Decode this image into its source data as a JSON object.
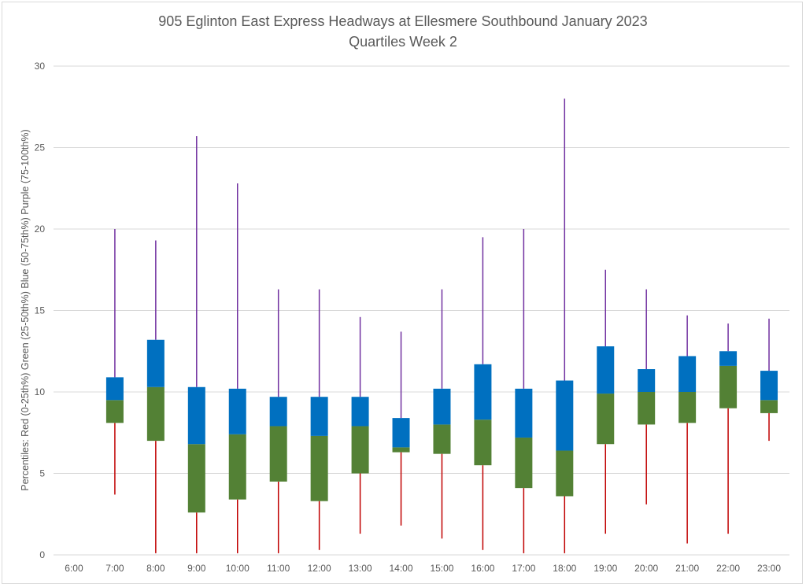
{
  "chart_data": {
    "type": "box",
    "title": "905 Eglinton East Express Headways at Ellesmere Southbound January 2023",
    "subtitle": "Quartiles Week 2",
    "xlabel": "",
    "ylabel": "Percentiles:  Red (0-25th%)  Green (25-50th%)  Blue (50-75th%)  Purple (75-100th%)",
    "ylim": [
      0,
      30
    ],
    "yticks": [
      0,
      5,
      10,
      15,
      20,
      25,
      30
    ],
    "grid": true,
    "legend": "none",
    "colors": {
      "q1_whisker": "#c00000",
      "lower_box": "#538135",
      "upper_box": "#0070c0",
      "q4_whisker": "#7030a0",
      "grid": "#d9d9d9",
      "text": "#595959"
    },
    "categories": [
      "6:00",
      "7:00",
      "8:00",
      "9:00",
      "10:00",
      "11:00",
      "12:00",
      "13:00",
      "14:00",
      "15:00",
      "16:00",
      "17:00",
      "18:00",
      "19:00",
      "20:00",
      "21:00",
      "22:00",
      "23:00"
    ],
    "series": [
      {
        "name": "min",
        "values": [
          null,
          3.7,
          0.1,
          0.1,
          0.1,
          0.1,
          0.3,
          1.3,
          1.8,
          1.0,
          0.3,
          0.1,
          0.1,
          1.3,
          3.1,
          0.7,
          1.3,
          7.0
        ]
      },
      {
        "name": "q1",
        "values": [
          null,
          8.1,
          7.0,
          2.6,
          3.4,
          4.5,
          3.3,
          5.0,
          6.3,
          6.2,
          5.5,
          4.1,
          3.6,
          6.8,
          8.0,
          8.1,
          9.0,
          8.7
        ]
      },
      {
        "name": "median",
        "values": [
          null,
          9.5,
          10.3,
          6.8,
          7.4,
          7.9,
          7.3,
          7.9,
          6.6,
          8.0,
          8.3,
          7.2,
          6.4,
          9.9,
          10.0,
          10.0,
          11.6,
          9.5
        ]
      },
      {
        "name": "q3",
        "values": [
          null,
          10.9,
          13.2,
          10.3,
          10.2,
          9.7,
          9.7,
          9.7,
          8.4,
          10.2,
          11.7,
          10.2,
          10.7,
          12.8,
          11.4,
          12.2,
          12.5,
          11.3
        ]
      },
      {
        "name": "max",
        "values": [
          null,
          20.0,
          19.3,
          25.7,
          22.8,
          16.3,
          16.3,
          14.6,
          13.7,
          16.3,
          19.5,
          20.0,
          28.0,
          17.5,
          16.3,
          14.7,
          14.2,
          14.5
        ]
      }
    ]
  }
}
